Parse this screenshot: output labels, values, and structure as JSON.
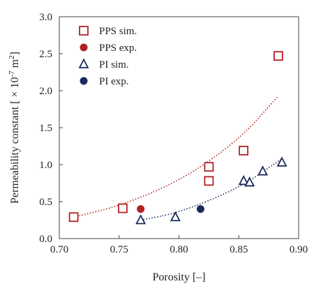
{
  "chart_data": {
    "type": "scatter",
    "xlabel": "Porosity [–]",
    "ylabel": "Permeability  constant [ × 10",
    "ylabel_exp1": "-7",
    "ylabel_mid": " m",
    "ylabel_exp2": "2",
    "ylabel_end": "]",
    "xlim": [
      0.7,
      0.9
    ],
    "ylim": [
      0.0,
      3.0
    ],
    "x_ticks": [
      "0.70",
      "0.75",
      "0.80",
      "0.85",
      "0.90"
    ],
    "y_ticks": [
      "0.0",
      "0.5",
      "1.0",
      "1.5",
      "2.0",
      "2.5",
      "3.0"
    ],
    "legend_position": "top-left",
    "colors": {
      "pps": "#b22222",
      "pi": "#1a2a5e"
    },
    "series": [
      {
        "name": "PPS sim.",
        "marker": "open-square",
        "color": "#b22222",
        "points": [
          [
            0.712,
            0.29
          ],
          [
            0.753,
            0.41
          ],
          [
            0.825,
            0.97
          ],
          [
            0.825,
            0.78
          ],
          [
            0.854,
            1.19
          ],
          [
            0.883,
            2.47
          ]
        ]
      },
      {
        "name": "PPS exp.",
        "marker": "filled-circle",
        "color": "#b22222",
        "points": [
          [
            0.768,
            0.4
          ]
        ]
      },
      {
        "name": "PI sim.",
        "marker": "open-triangle",
        "color": "#1a2a5e",
        "points": [
          [
            0.768,
            0.25
          ],
          [
            0.797,
            0.29
          ],
          [
            0.854,
            0.78
          ],
          [
            0.859,
            0.76
          ],
          [
            0.87,
            0.91
          ],
          [
            0.886,
            1.03
          ]
        ]
      },
      {
        "name": "PI exp.",
        "marker": "filled-circle",
        "color": "#1a2a5e",
        "points": [
          [
            0.818,
            0.4
          ]
        ]
      }
    ],
    "trendlines": [
      {
        "series": "PPS",
        "style": "dotted",
        "color": "#b22222",
        "x_range": [
          0.712,
          0.883
        ],
        "points": [
          [
            0.712,
            0.29
          ],
          [
            0.75,
            0.44
          ],
          [
            0.8,
            0.77
          ],
          [
            0.85,
            1.33
          ],
          [
            0.883,
            1.93
          ]
        ]
      },
      {
        "series": "PI",
        "style": "dotted",
        "color": "#1a2a5e",
        "x_range": [
          0.768,
          0.886
        ],
        "points": [
          [
            0.768,
            0.25
          ],
          [
            0.8,
            0.35
          ],
          [
            0.85,
            0.68
          ],
          [
            0.886,
            1.08
          ]
        ]
      }
    ]
  }
}
